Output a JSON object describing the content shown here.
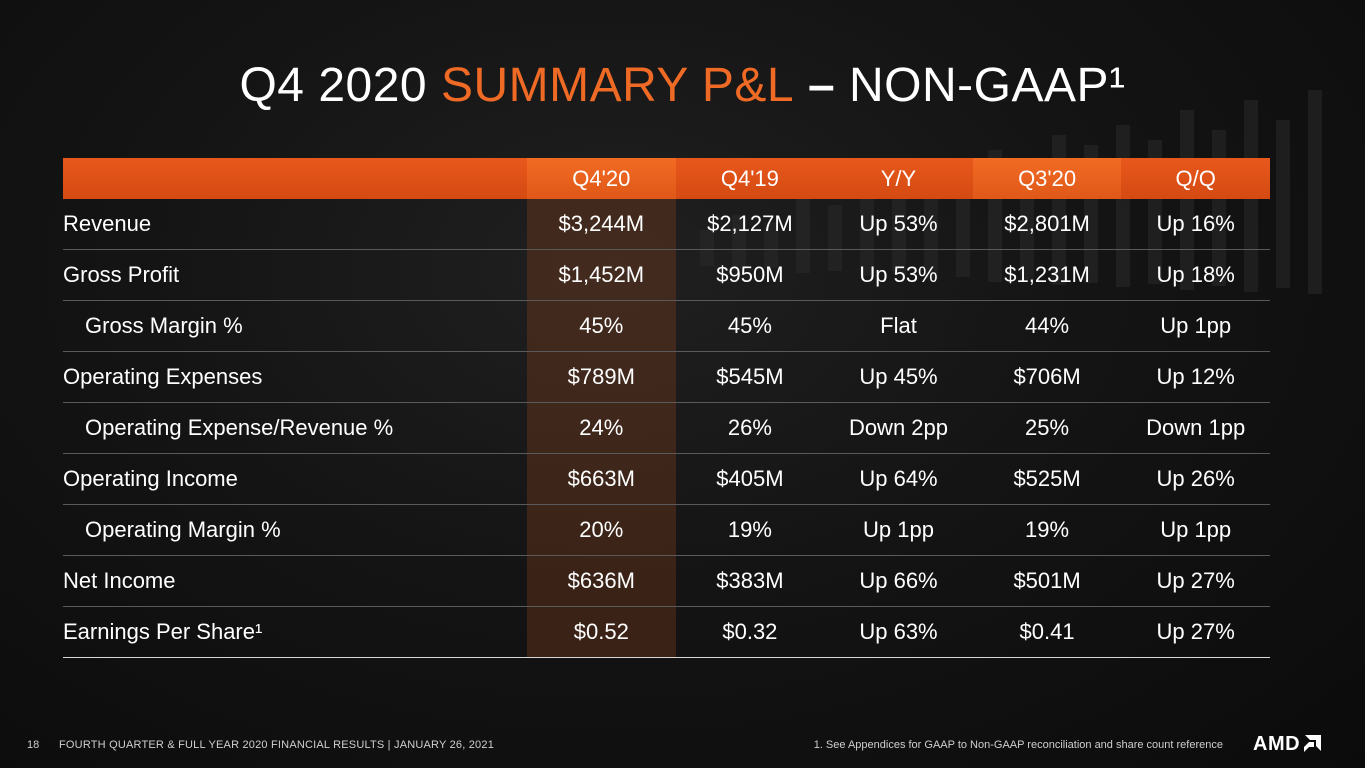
{
  "title": {
    "part1": "Q4 2020 ",
    "part2": "SUMMARY P&L",
    "part3": " – ",
    "part4": "NON-GAAP¹"
  },
  "table": {
    "headers": [
      "",
      "Q4'20",
      "Q4'19",
      "Y/Y",
      "Q3'20",
      "Q/Q"
    ],
    "rows": [
      {
        "label": "Revenue",
        "indent": false,
        "values": [
          "$3,244M",
          "$2,127M",
          "Up 53%",
          "$2,801M",
          "Up 16%"
        ]
      },
      {
        "label": "Gross Profit",
        "indent": false,
        "values": [
          "$1,452M",
          "$950M",
          "Up 53%",
          "$1,231M",
          "Up 18%"
        ]
      },
      {
        "label": "Gross Margin %",
        "indent": true,
        "values": [
          "45%",
          "45%",
          "Flat",
          "44%",
          "Up 1pp"
        ]
      },
      {
        "label": "Operating Expenses",
        "indent": false,
        "values": [
          "$789M",
          "$545M",
          "Up 45%",
          "$706M",
          "Up 12%"
        ]
      },
      {
        "label": "Operating Expense/Revenue %",
        "indent": true,
        "values": [
          "24%",
          "26%",
          "Down 2pp",
          "25%",
          "Down 1pp"
        ]
      },
      {
        "label": "Operating Income",
        "indent": false,
        "values": [
          "$663M",
          "$405M",
          "Up 64%",
          "$525M",
          "Up 26%"
        ]
      },
      {
        "label": "Operating Margin %",
        "indent": true,
        "values": [
          "20%",
          "19%",
          "Up 1pp",
          "19%",
          "Up 1pp"
        ]
      },
      {
        "label": "Net Income",
        "indent": false,
        "values": [
          "$636M",
          "$383M",
          "Up 66%",
          "$501M",
          "Up 27%"
        ]
      },
      {
        "label": "Earnings Per Share¹",
        "indent": false,
        "values": [
          "$0.52",
          "$0.32",
          "Up 63%",
          "$0.41",
          "Up 27%"
        ]
      }
    ]
  },
  "footer": {
    "page_number": "18",
    "left_text": "FOURTH QUARTER & FULL YEAR 2020 FINANCIAL RESULTS  |  JANUARY 26, 2021",
    "right_text": "1.  See Appendices for GAAP to Non-GAAP reconciliation and share count reference",
    "logo_text": "AMD",
    "logo_icon": "amd-arrow-icon"
  },
  "colors": {
    "accent": "#ef6a25",
    "header_bar": "#e05818",
    "background": "#141414"
  }
}
